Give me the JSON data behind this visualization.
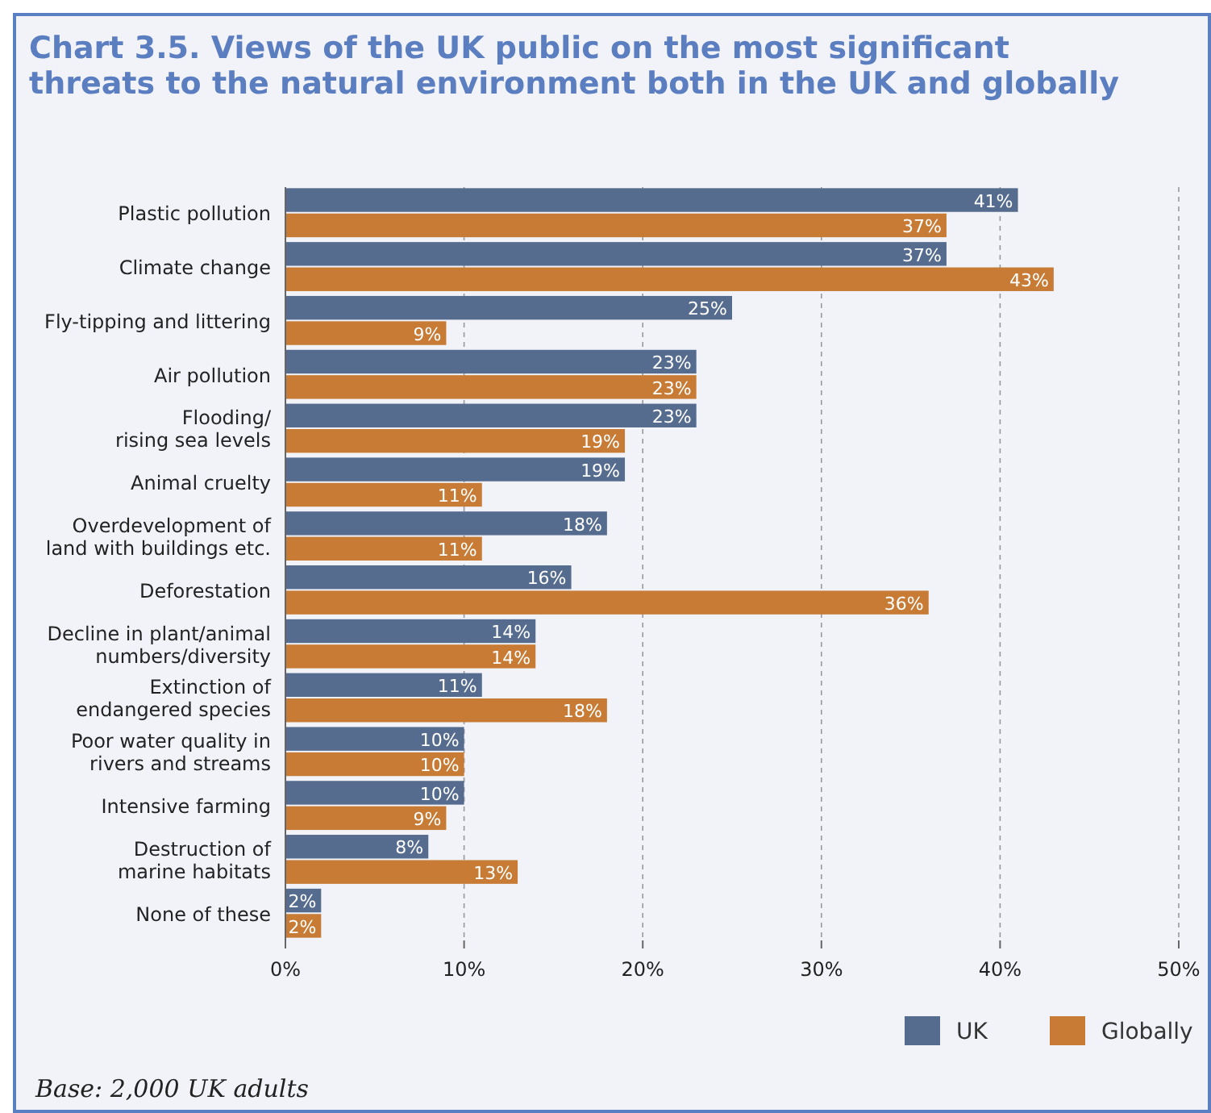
{
  "chart_data": {
    "type": "bar",
    "orientation": "horizontal",
    "title": "Chart 3.5. Views of the UK public on the most significant threats to the natural environment both in the UK and globally",
    "categories": [
      "Plastic pollution",
      "Climate change",
      "Fly-tipping and littering",
      "Air pollution",
      "Flooding/\nrising sea levels",
      "Animal cruelty",
      "Overdevelopment of\nland with buildings etc.",
      "Deforestation",
      "Decline in plant/animal\nnumbers/diversity",
      "Extinction of\nendangered species",
      "Poor water quality in\nrivers and streams",
      "Intensive farming",
      "Destruction of\nmarine habitats",
      "None of these"
    ],
    "series": [
      {
        "name": "UK",
        "color": "#566c8f",
        "values": [
          41,
          37,
          25,
          23,
          23,
          19,
          18,
          16,
          14,
          11,
          10,
          10,
          8,
          2
        ],
        "value_labels": [
          "41%",
          "37%",
          "25%",
          "23%",
          "23%",
          "19%",
          "18%",
          "16%",
          "14%",
          "11%",
          "10%",
          "10%",
          "8%",
          "2%"
        ]
      },
      {
        "name": "Globally",
        "color": "#c77b35",
        "values": [
          37,
          43,
          9,
          23,
          19,
          11,
          11,
          36,
          14,
          18,
          10,
          9,
          13,
          2
        ],
        "value_labels": [
          "37%",
          "43%",
          "9%",
          "23%",
          "19%",
          "11%",
          "11%",
          "36%",
          "14%",
          "18%",
          "10%",
          "9%",
          "13%",
          "2%"
        ]
      }
    ],
    "xlim": [
      0,
      50
    ],
    "xticks": [
      {
        "value": 0,
        "label": "0%"
      },
      {
        "value": 10,
        "label": "10%"
      },
      {
        "value": 20,
        "label": "20%"
      },
      {
        "value": 30,
        "label": "30%"
      },
      {
        "value": 40,
        "label": "40%"
      },
      {
        "value": 50,
        "label": "50%"
      }
    ],
    "grid": "x",
    "legend": "bottom right",
    "annotations": [
      "Base: 2,000 UK adults"
    ]
  }
}
